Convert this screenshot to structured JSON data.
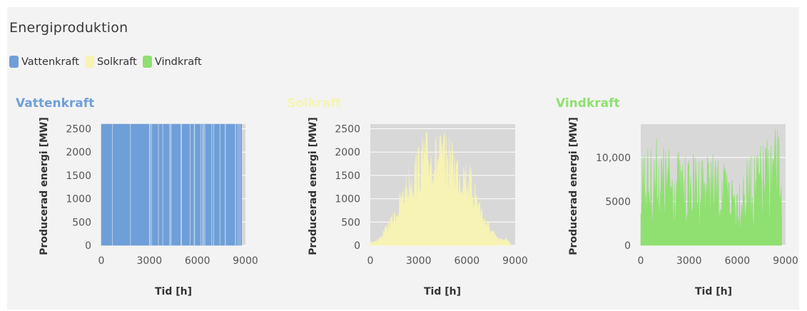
{
  "header": {
    "title": "Energiproduktion"
  },
  "legend": [
    {
      "label": "Vattenkraft",
      "color": "#6f9fd8"
    },
    {
      "label": "Solkraft",
      "color": "#f6f3b4"
    },
    {
      "label": "Vindkraft",
      "color": "#8fe070"
    }
  ],
  "chart_data": [
    {
      "type": "area",
      "title": "Vattenkraft",
      "color": "#6f9fd8",
      "xlabel": "Tid [h]",
      "ylabel": "Producerad energi [MW]",
      "xlim": [
        0,
        9000
      ],
      "ylim": [
        0,
        2600
      ],
      "xticks": [
        0,
        3000,
        6000,
        9000
      ],
      "yticks": [
        0,
        500,
        1000,
        1500,
        2000,
        2500
      ],
      "ytick_labels": [
        "0",
        "500",
        "1000",
        "1500",
        "2000",
        "2500"
      ],
      "x": [
        0,
        8760
      ],
      "values": [
        2600,
        2600
      ],
      "background": "#d8d8d8"
    },
    {
      "type": "area",
      "title": "Solkraft",
      "color": "#f6f3b4",
      "xlabel": "Tid [h]",
      "ylabel": "Producerad energi [MW]",
      "xlim": [
        0,
        9000
      ],
      "ylim": [
        0,
        2600
      ],
      "xticks": [
        0,
        3000,
        6000,
        9000
      ],
      "yticks": [
        0,
        500,
        1000,
        1500,
        2000,
        2500
      ],
      "ytick_labels": [
        "0",
        "500",
        "1000",
        "1500",
        "2000",
        "2500"
      ],
      "x": [
        0,
        500,
        1000,
        1500,
        2000,
        2500,
        3000,
        3500,
        4000,
        4500,
        5000,
        5500,
        6000,
        6500,
        7000,
        7500,
        8000,
        8500,
        8760
      ],
      "values": [
        80,
        150,
        450,
        800,
        1300,
        1800,
        2200,
        2500,
        2400,
        2450,
        2300,
        2100,
        1900,
        1500,
        800,
        400,
        150,
        200,
        0
      ],
      "background": "#d8d8d8"
    },
    {
      "type": "area",
      "title": "Vindkraft",
      "color": "#8fe070",
      "xlabel": "Tid [h]",
      "ylabel": "Producerad energi [MW]",
      "xlim": [
        0,
        9000
      ],
      "ylim": [
        0,
        13800
      ],
      "xticks": [
        0,
        3000,
        6000,
        9000
      ],
      "yticks": [
        0,
        5000,
        10000
      ],
      "ytick_labels": [
        "0",
        "5000",
        "10,000"
      ],
      "x": [
        0,
        500,
        1000,
        1500,
        2000,
        2500,
        3000,
        3500,
        4000,
        4500,
        5000,
        5500,
        6000,
        6500,
        7000,
        7500,
        8000,
        8500,
        8760
      ],
      "values": [
        13200,
        11000,
        12500,
        11500,
        11800,
        10500,
        10000,
        11000,
        11300,
        10500,
        9500,
        9000,
        8500,
        9500,
        10500,
        11500,
        13000,
        13500,
        13000
      ],
      "background": "#d8d8d8"
    }
  ]
}
